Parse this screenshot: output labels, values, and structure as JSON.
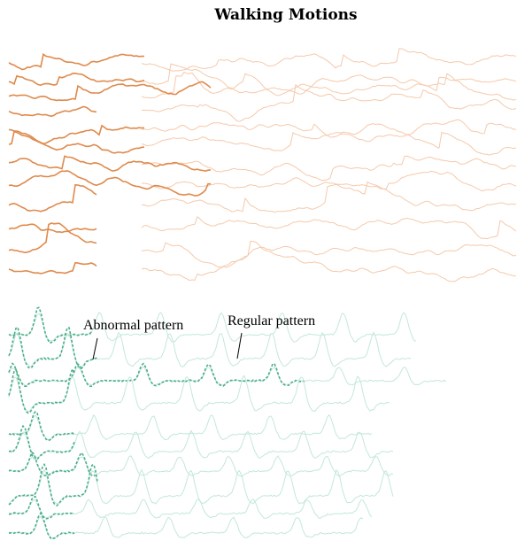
{
  "title": "Walking Motions",
  "annotations": [
    {
      "text": "Abnormal pattern"
    },
    {
      "text": "Regular pattern"
    }
  ]
}
